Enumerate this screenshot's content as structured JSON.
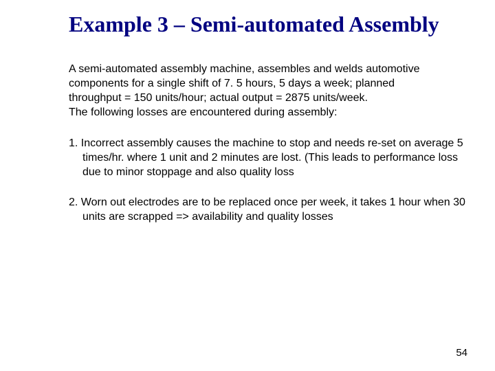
{
  "title_fontsize": 32,
  "body_fontsize": 16,
  "pagenum_fontsize": 15,
  "title_color": "#000080",
  "text_color": "#000000",
  "background_color": "#ffffff",
  "title": "Example 3 – Semi-automated Assembly",
  "intro_lines": [
    "A semi-automated assembly machine, assembles and welds automotive",
    "components for a single shift of 7. 5 hours, 5 days a week; planned",
    "throughput = 150 units/hour; actual output = 2875 units/week.",
    "The following losses are encountered during assembly:"
  ],
  "items": [
    "1. Incorrect assembly causes the machine to stop and needs re-set on average 5 times/hr. where 1 unit and 2 minutes are lost. (This leads to performance loss due to minor stoppage and also quality loss",
    "2. Worn out electrodes are to be replaced once per week, it takes 1 hour when 30 units are scrapped  => availability and quality losses"
  ],
  "page_number": "54"
}
